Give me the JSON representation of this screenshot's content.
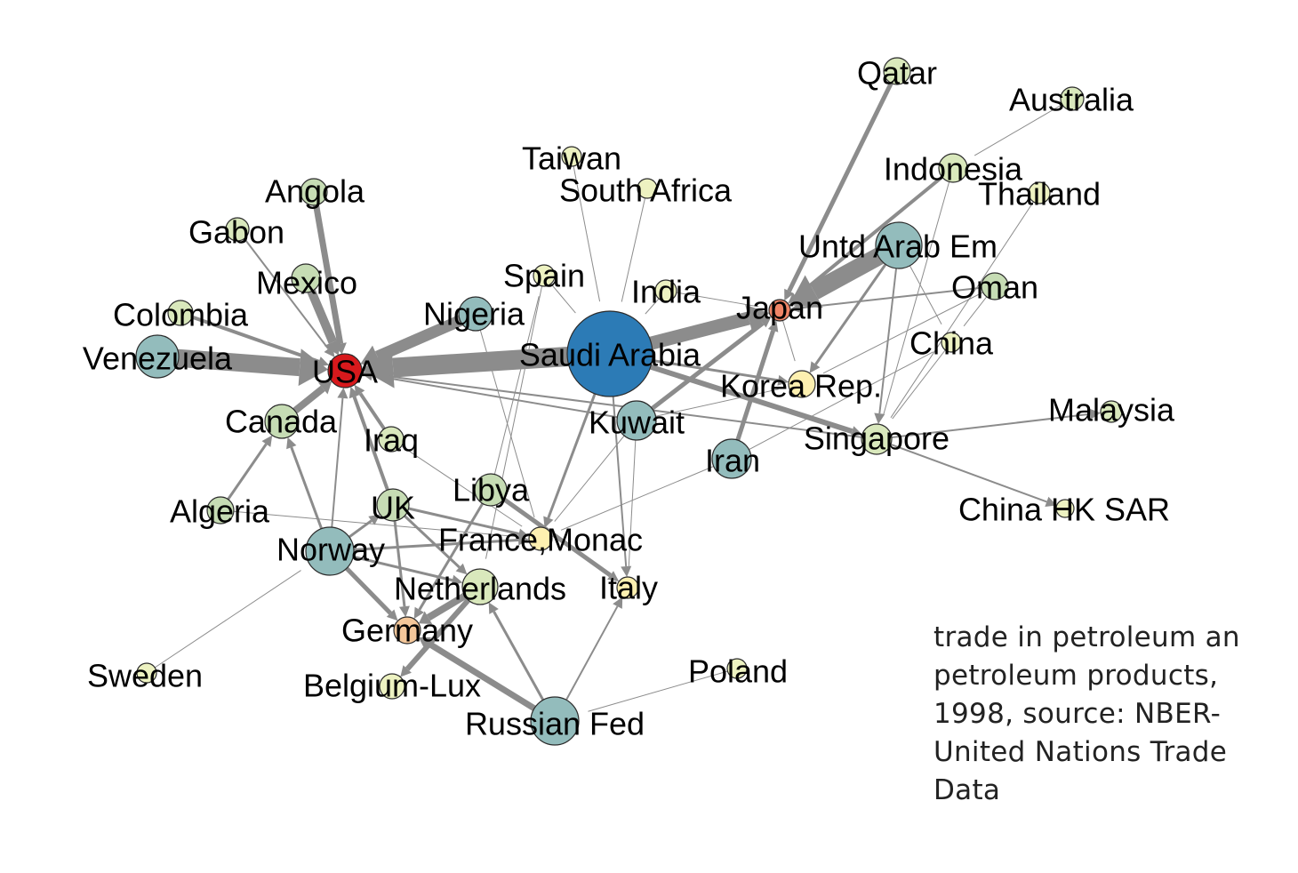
{
  "caption": {
    "lines": [
      "trade in petroleum an",
      "petroleum products,",
      "1998, source: NBER-",
      "United Nations Trade",
      "Data"
    ]
  },
  "colors": {
    "edge": "#8c8c8c",
    "usa": "#d7191c",
    "saudi": "#2c7bb6",
    "teal": "#93bcbc",
    "green": "#c6dcb4",
    "light_green": "#d9e8bc",
    "light_yellow": "#edf2c1",
    "yellow": "#fdf0b0",
    "orange": "#f4c79a",
    "salmon": "#f08567"
  },
  "nodes": [
    {
      "id": "usa",
      "label": "USA",
      "color": "usa",
      "size": 19
    },
    {
      "id": "saudi",
      "label": "Saudi Arabia",
      "color": "saudi",
      "size": 48
    },
    {
      "id": "venezuela",
      "label": "Venezuela",
      "color": "teal",
      "size": 24
    },
    {
      "id": "colombia",
      "label": "Colombia",
      "color": "light_green",
      "size": 14
    },
    {
      "id": "mexico",
      "label": "Mexico",
      "color": "green",
      "size": 16
    },
    {
      "id": "gabon",
      "label": "Gabon",
      "color": "light_green",
      "size": 13
    },
    {
      "id": "angola",
      "label": "Angola",
      "color": "green",
      "size": 15
    },
    {
      "id": "nigeria",
      "label": "Nigeria",
      "color": "teal",
      "size": 19
    },
    {
      "id": "canada",
      "label": "Canada",
      "color": "green",
      "size": 19
    },
    {
      "id": "iraq",
      "label": "Iraq",
      "color": "light_green",
      "size": 14
    },
    {
      "id": "algeria",
      "label": "Algeria",
      "color": "green",
      "size": 15
    },
    {
      "id": "norway",
      "label": "Norway",
      "color": "teal",
      "size": 27
    },
    {
      "id": "uk",
      "label": "UK",
      "color": "green",
      "size": 18
    },
    {
      "id": "libya",
      "label": "Libya",
      "color": "green",
      "size": 18
    },
    {
      "id": "france",
      "label": "France,Monac",
      "color": "yellow",
      "size": 13
    },
    {
      "id": "netherlands",
      "label": "Netherlands",
      "color": "light_green",
      "size": 20
    },
    {
      "id": "italy",
      "label": "Italy",
      "color": "yellow",
      "size": 12
    },
    {
      "id": "germany",
      "label": "Germany",
      "color": "orange",
      "size": 15
    },
    {
      "id": "belgium",
      "label": "Belgium-Lux",
      "color": "light_yellow",
      "size": 14
    },
    {
      "id": "sweden",
      "label": "Sweden",
      "color": "light_yellow",
      "size": 11
    },
    {
      "id": "russia",
      "label": "Russian Fed",
      "color": "teal",
      "size": 27
    },
    {
      "id": "poland",
      "label": "Poland",
      "color": "light_yellow",
      "size": 11
    },
    {
      "id": "taiwan",
      "label": "Taiwan",
      "color": "light_yellow",
      "size": 11
    },
    {
      "id": "south_africa",
      "label": "South Africa",
      "color": "light_yellow",
      "size": 11
    },
    {
      "id": "spain",
      "label": "Spain",
      "color": "light_yellow",
      "size": 12
    },
    {
      "id": "india",
      "label": "India",
      "color": "light_yellow",
      "size": 12
    },
    {
      "id": "kuwait",
      "label": "Kuwait",
      "color": "teal",
      "size": 22
    },
    {
      "id": "iran",
      "label": "Iran",
      "color": "teal",
      "size": 22
    },
    {
      "id": "japan",
      "label": "Japan",
      "color": "salmon",
      "size": 12
    },
    {
      "id": "korea",
      "label": "Korea Rep.",
      "color": "yellow",
      "size": 15
    },
    {
      "id": "china",
      "label": "China",
      "color": "light_yellow",
      "size": 11
    },
    {
      "id": "singapore",
      "label": "Singapore",
      "color": "light_green",
      "size": 17
    },
    {
      "id": "malaysia",
      "label": "Malaysia",
      "color": "light_green",
      "size": 12
    },
    {
      "id": "hk",
      "label": "China HK SAR",
      "color": "light_yellow",
      "size": 10
    },
    {
      "id": "uae",
      "label": "Untd Arab Em",
      "color": "teal",
      "size": 26
    },
    {
      "id": "oman",
      "label": "Oman",
      "color": "green",
      "size": 15
    },
    {
      "id": "indonesia",
      "label": "Indonesia",
      "color": "light_green",
      "size": 16
    },
    {
      "id": "thailand",
      "label": "Thailand",
      "color": "light_yellow",
      "size": 12
    },
    {
      "id": "qatar",
      "label": "Qatar",
      "color": "light_green",
      "size": 15
    },
    {
      "id": "australia",
      "label": "Australia",
      "color": "light_green",
      "size": 13
    }
  ],
  "edges": [
    {
      "from": "saudi",
      "to": "usa",
      "weight": 22
    },
    {
      "from": "venezuela",
      "to": "usa",
      "weight": 20
    },
    {
      "from": "nigeria",
      "to": "usa",
      "weight": 13
    },
    {
      "from": "mexico",
      "to": "usa",
      "weight": 10
    },
    {
      "from": "angola",
      "to": "usa",
      "weight": 7
    },
    {
      "from": "colombia",
      "to": "usa",
      "weight": 4
    },
    {
      "from": "gabon",
      "to": "usa",
      "weight": 2
    },
    {
      "from": "canada",
      "to": "usa",
      "weight": 8
    },
    {
      "from": "iraq",
      "to": "usa",
      "weight": 4
    },
    {
      "from": "uk",
      "to": "usa",
      "weight": 4
    },
    {
      "from": "norway",
      "to": "usa",
      "weight": 2
    },
    {
      "from": "kuwait",
      "to": "usa",
      "weight": 2
    },
    {
      "from": "algeria",
      "to": "canada",
      "weight": 3
    },
    {
      "from": "norway",
      "to": "canada",
      "weight": 3
    },
    {
      "from": "saudi",
      "to": "japan",
      "weight": 15
    },
    {
      "from": "uae",
      "to": "japan",
      "weight": 20
    },
    {
      "from": "qatar",
      "to": "japan",
      "weight": 5
    },
    {
      "from": "indonesia",
      "to": "japan",
      "weight": 4
    },
    {
      "from": "kuwait",
      "to": "japan",
      "weight": 5
    },
    {
      "from": "iran",
      "to": "japan",
      "weight": 5
    },
    {
      "from": "oman",
      "to": "japan",
      "weight": 2
    },
    {
      "from": "india",
      "to": "japan",
      "weight": 1
    },
    {
      "from": "uae",
      "to": "korea",
      "weight": 3
    },
    {
      "from": "saudi",
      "to": "korea",
      "weight": 3
    },
    {
      "from": "japan",
      "to": "korea",
      "weight": 1
    },
    {
      "from": "oman",
      "to": "korea",
      "weight": 1
    },
    {
      "from": "saudi",
      "to": "singapore",
      "weight": 6
    },
    {
      "from": "uae",
      "to": "singapore",
      "weight": 2
    },
    {
      "from": "indonesia",
      "to": "singapore",
      "weight": 1
    },
    {
      "from": "singapore",
      "to": "malaysia",
      "weight": 2
    },
    {
      "from": "singapore",
      "to": "hk",
      "weight": 2
    },
    {
      "from": "thailand",
      "to": "singapore",
      "weight": 1
    },
    {
      "from": "china",
      "to": "singapore",
      "weight": 1
    },
    {
      "from": "australia",
      "to": "indonesia",
      "weight": 1
    },
    {
      "from": "singapore",
      "to": "usa",
      "weight": 2
    },
    {
      "from": "saudi",
      "to": "france",
      "weight": 3
    },
    {
      "from": "saudi",
      "to": "italy",
      "weight": 2
    },
    {
      "from": "libya",
      "to": "italy",
      "weight": 5
    },
    {
      "from": "libya",
      "to": "germany",
      "weight": 3
    },
    {
      "from": "norway",
      "to": "uk",
      "weight": 3
    },
    {
      "from": "norway",
      "to": "germany",
      "weight": 5
    },
    {
      "from": "norway",
      "to": "netherlands",
      "weight": 3
    },
    {
      "from": "norway",
      "to": "france",
      "weight": 3
    },
    {
      "from": "uk",
      "to": "germany",
      "weight": 3
    },
    {
      "from": "uk",
      "to": "netherlands",
      "weight": 3
    },
    {
      "from": "uk",
      "to": "france",
      "weight": 3
    },
    {
      "from": "netherlands",
      "to": "germany",
      "weight": 8
    },
    {
      "from": "netherlands",
      "to": "belgium",
      "weight": 6
    },
    {
      "from": "russia",
      "to": "germany",
      "weight": 7
    },
    {
      "from": "russia",
      "to": "netherlands",
      "weight": 3
    },
    {
      "from": "russia",
      "to": "italy",
      "weight": 2
    },
    {
      "from": "poland",
      "to": "russia",
      "weight": 1
    },
    {
      "from": "sweden",
      "to": "norway",
      "weight": 1
    },
    {
      "from": "kuwait",
      "to": "italy",
      "weight": 1
    },
    {
      "from": "iran",
      "to": "france",
      "weight": 1
    },
    {
      "from": "kuwait",
      "to": "france",
      "weight": 1
    },
    {
      "from": "taiwan",
      "to": "saudi",
      "weight": 1
    },
    {
      "from": "south_africa",
      "to": "saudi",
      "weight": 1
    },
    {
      "from": "spain",
      "to": "saudi",
      "weight": 1
    },
    {
      "from": "india",
      "to": "saudi",
      "weight": 1
    },
    {
      "from": "kuwait",
      "to": "korea",
      "weight": 1
    },
    {
      "from": "uae",
      "to": "china",
      "weight": 1
    },
    {
      "from": "oman",
      "to": "china",
      "weight": 1
    },
    {
      "from": "iran",
      "to": "china",
      "weight": 1
    },
    {
      "from": "libya",
      "to": "spain",
      "weight": 1
    },
    {
      "from": "nigeria",
      "to": "france",
      "weight": 1
    },
    {
      "from": "algeria",
      "to": "france",
      "weight": 1
    },
    {
      "from": "spain",
      "to": "netherlands",
      "weight": 1
    },
    {
      "from": "iraq",
      "to": "france",
      "weight": 1
    }
  ]
}
